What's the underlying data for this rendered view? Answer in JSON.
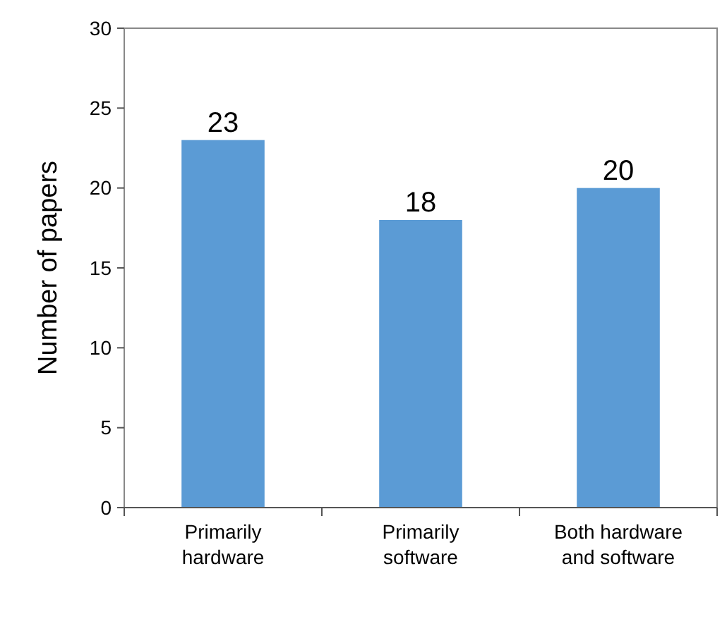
{
  "chart_data": {
    "type": "bar",
    "ylabel": "Number of papers",
    "categories": [
      "Primarily hardware",
      "Primarily software",
      "Both hardware and software"
    ],
    "values": [
      23,
      18,
      20
    ],
    "color": "#5b9bd5",
    "ylim": [
      0,
      30
    ],
    "yticks": [
      0,
      5,
      10,
      15,
      20,
      25,
      30
    ],
    "grid": false,
    "data_labels": true
  }
}
